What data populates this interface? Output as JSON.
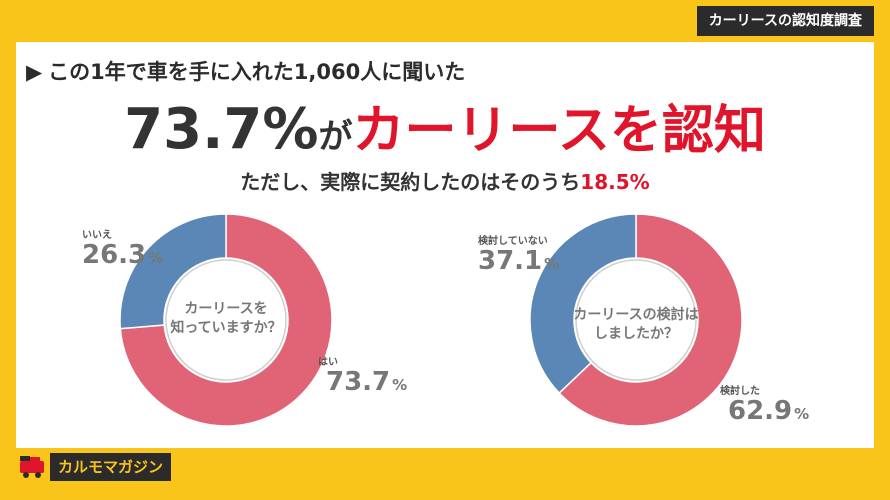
{
  "corner_tag": "カーリースの認知度調査",
  "lead": "この1年で車を手に入れた1,060人に聞いた",
  "headline": {
    "number": "73.7%",
    "particle": "が",
    "highlight": "カーリースを認知"
  },
  "sub": {
    "text": "ただし、実際に契約したのはそのうち",
    "highlight": "18.5%"
  },
  "colors": {
    "background": "#f9c51a",
    "accent_red": "#e0142a",
    "slice_pink": "#e06476",
    "slice_blue": "#5a87b5"
  },
  "brand": {
    "name": "カルモマガジン",
    "icon": "car-logo-icon"
  },
  "chart_data": [
    {
      "type": "pie",
      "center_label": [
        "カーリースを",
        "知っていますか？"
      ],
      "slices": [
        {
          "label": "はい",
          "value": 73.7,
          "color": "#e06476"
        },
        {
          "label": "いいえ",
          "value": 26.3,
          "color": "#5a87b5"
        }
      ],
      "unit": "%"
    },
    {
      "type": "pie",
      "center_label": [
        "カーリースの検討は",
        "しましたか？"
      ],
      "slices": [
        {
          "label": "検討した",
          "value": 62.9,
          "color": "#e06476"
        },
        {
          "label": "検討していない",
          "value": 37.1,
          "color": "#5a87b5"
        }
      ],
      "unit": "%"
    }
  ]
}
